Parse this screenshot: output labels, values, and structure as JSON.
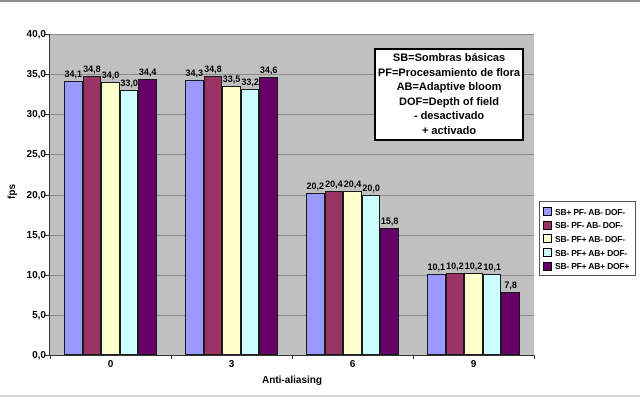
{
  "chart_data": {
    "type": "bar",
    "title": "",
    "xlabel": "Anti-aliasing",
    "ylabel": "fps",
    "categories": [
      "0",
      "3",
      "6",
      "9"
    ],
    "series": [
      {
        "name": "SB+ PF- AB- DOF-",
        "color": "#9999FF",
        "values": [
          34.1,
          34.3,
          20.2,
          10.1
        ],
        "labels": [
          "34,1",
          "34,3",
          "20,2",
          "10,1"
        ]
      },
      {
        "name": "SB- PF- AB- DOF-",
        "color": "#993366",
        "values": [
          34.8,
          34.8,
          20.4,
          10.2
        ],
        "labels": [
          "34,8",
          "34,8",
          "20,4",
          "10,2"
        ]
      },
      {
        "name": "SB- PF+ AB- DOF-",
        "color": "#FFFFCC",
        "values": [
          34.0,
          33.5,
          20.4,
          10.2
        ],
        "labels": [
          "34,0",
          "33,5",
          "20,4",
          "10,2"
        ]
      },
      {
        "name": "SB- PF+ AB+ DOF-",
        "color": "#CCFFFF",
        "values": [
          33.0,
          33.2,
          20.0,
          10.1
        ],
        "labels": [
          "33,0",
          "33,2",
          "20,0",
          "10,1"
        ]
      },
      {
        "name": "SB- PF+ AB+ DOF+",
        "color": "#660066",
        "values": [
          34.4,
          34.6,
          15.8,
          7.8
        ],
        "labels": [
          "34,4",
          "34,6",
          "15,8",
          "7,8"
        ]
      }
    ],
    "y_ticks": [
      "0,0",
      "5,0",
      "10,0",
      "15,0",
      "20,0",
      "25,0",
      "30,0",
      "35,0",
      "40,0"
    ],
    "y_tick_values": [
      0,
      5,
      10,
      15,
      20,
      25,
      30,
      35,
      40
    ],
    "ylim": [
      0,
      40
    ],
    "grid": true,
    "legend_position": "right",
    "plot_bg_color": "#C0C0C0",
    "gridline_color": "#8A8A8A"
  },
  "annotation": {
    "lines": [
      "SB=Sombras básicas",
      "PF=Procesamiento de flora",
      "AB=Adaptive bloom",
      "DOF=Depth of field",
      "- desactivado",
      "+ activado"
    ]
  }
}
